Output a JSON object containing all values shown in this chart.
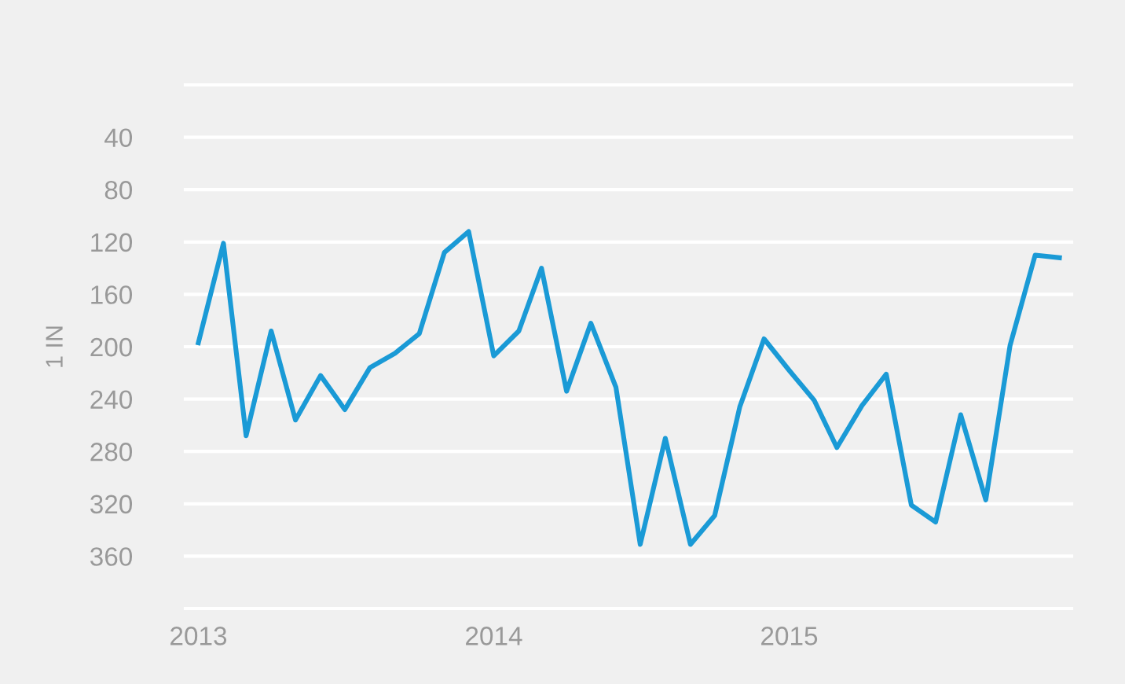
{
  "chart_data": {
    "type": "line",
    "ylabel": "1 IN",
    "x": [
      "2013-01",
      "2013-02",
      "2013-03",
      "2013-04",
      "2013-05",
      "2013-06",
      "2013-07",
      "2013-08",
      "2013-09",
      "2013-10",
      "2013-11",
      "2013-12",
      "2014-01",
      "2014-02",
      "2014-03",
      "2014-04",
      "2014-05",
      "2014-06",
      "2014-07",
      "2014-08",
      "2014-09",
      "2014-10",
      "2014-11",
      "2014-12",
      "2015-01",
      "2015-02",
      "2015-03",
      "2015-04",
      "2015-05",
      "2015-06",
      "2015-07",
      "2015-08",
      "2015-09",
      "2015-10",
      "2015-11",
      "2015-12"
    ],
    "series": [
      {
        "color": "#1a9ad6",
        "values": [
          197,
          121,
          268,
          188,
          256,
          222,
          248,
          216,
          205,
          190,
          128,
          112,
          207,
          188,
          140,
          234,
          182,
          231,
          351,
          270,
          351,
          329,
          246,
          194,
          218,
          241,
          277,
          245,
          221,
          321,
          334,
          252,
          317,
          199,
          130,
          132
        ]
      }
    ],
    "ylim": [
      400,
      0
    ],
    "yticks": [
      {
        "value": 0,
        "label": null
      },
      40,
      80,
      120,
      160,
      200,
      240,
      280,
      320,
      360,
      {
        "value": 400,
        "label": null
      }
    ],
    "xlim": [
      "2012-12-16",
      "2015-12-16"
    ],
    "xticks": [
      {
        "value": "2013-01",
        "label": "2013"
      },
      {
        "value": "2014-01",
        "label": "2014"
      },
      {
        "value": "2015-01",
        "label": "2015"
      }
    ],
    "grid": "y",
    "marker": "none",
    "line_style": "solid",
    "legend": false
  }
}
